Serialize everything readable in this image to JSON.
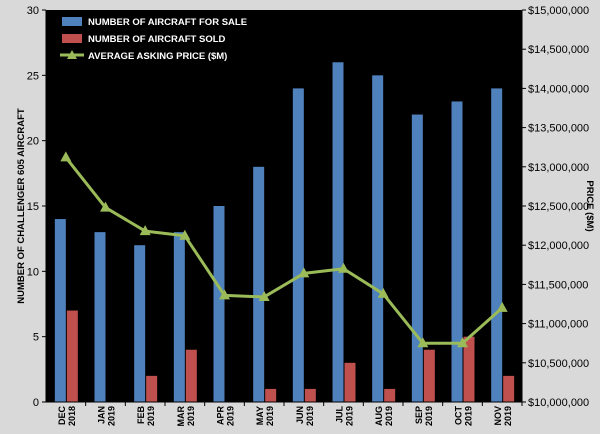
{
  "chart_data": {
    "type": "bar",
    "categories": [
      [
        "DEC",
        "2018"
      ],
      [
        "JAN",
        "2019"
      ],
      [
        "FEB",
        "2019"
      ],
      [
        "MAR",
        "2019"
      ],
      [
        "APR",
        "2019"
      ],
      [
        "MAY",
        "2019"
      ],
      [
        "JUN",
        "2019"
      ],
      [
        "JUL",
        "2019"
      ],
      [
        "AUG",
        "2019"
      ],
      [
        "SEP",
        "2019"
      ],
      [
        "OCT",
        "2019"
      ],
      [
        "NOV",
        "2019"
      ]
    ],
    "series": [
      {
        "name": "NUMBER OF AIRCRAFT FOR SALE",
        "type": "bar",
        "axis": "left",
        "color": "#4f81bd",
        "values": [
          14,
          13,
          12,
          13,
          15,
          18,
          24,
          26,
          25,
          22,
          23,
          24
        ]
      },
      {
        "name": "NUMBER OF AIRCRAFT SOLD",
        "type": "bar",
        "axis": "left",
        "color": "#c0504d",
        "values": [
          7,
          0,
          2,
          4,
          0,
          1,
          1,
          3,
          1,
          4,
          5,
          2
        ]
      },
      {
        "name": "AVERAGE ASKING PRICE ($M)",
        "type": "line",
        "axis": "right",
        "color": "#9bbb59",
        "values": [
          13120000,
          12480000,
          12180000,
          12120000,
          11360000,
          11340000,
          11640000,
          11700000,
          11380000,
          10750000,
          10750000,
          11200000
        ]
      }
    ],
    "y_left": {
      "label": "NUMBER OF CHALLENGER 605 AIRCRAFT",
      "ylim": [
        0,
        30
      ],
      "ticks": [
        "0",
        "5",
        "10",
        "15",
        "20",
        "25",
        "30"
      ]
    },
    "y_right": {
      "label": "PRICE ($M)",
      "ylim": [
        10000000,
        15000000
      ],
      "ticks": [
        "$10,000,000",
        "$10,500,000",
        "$11,000,000",
        "$11,500,000",
        "$12,000,000",
        "$12,500,000",
        "$13,000,000",
        "$13,500,000",
        "$14,000,000",
        "$14,500,000",
        "$15,000,000"
      ]
    },
    "legend_position": "top-left",
    "colors": {
      "plot_background": "#000000",
      "page_background": "#d9d9d9"
    }
  }
}
